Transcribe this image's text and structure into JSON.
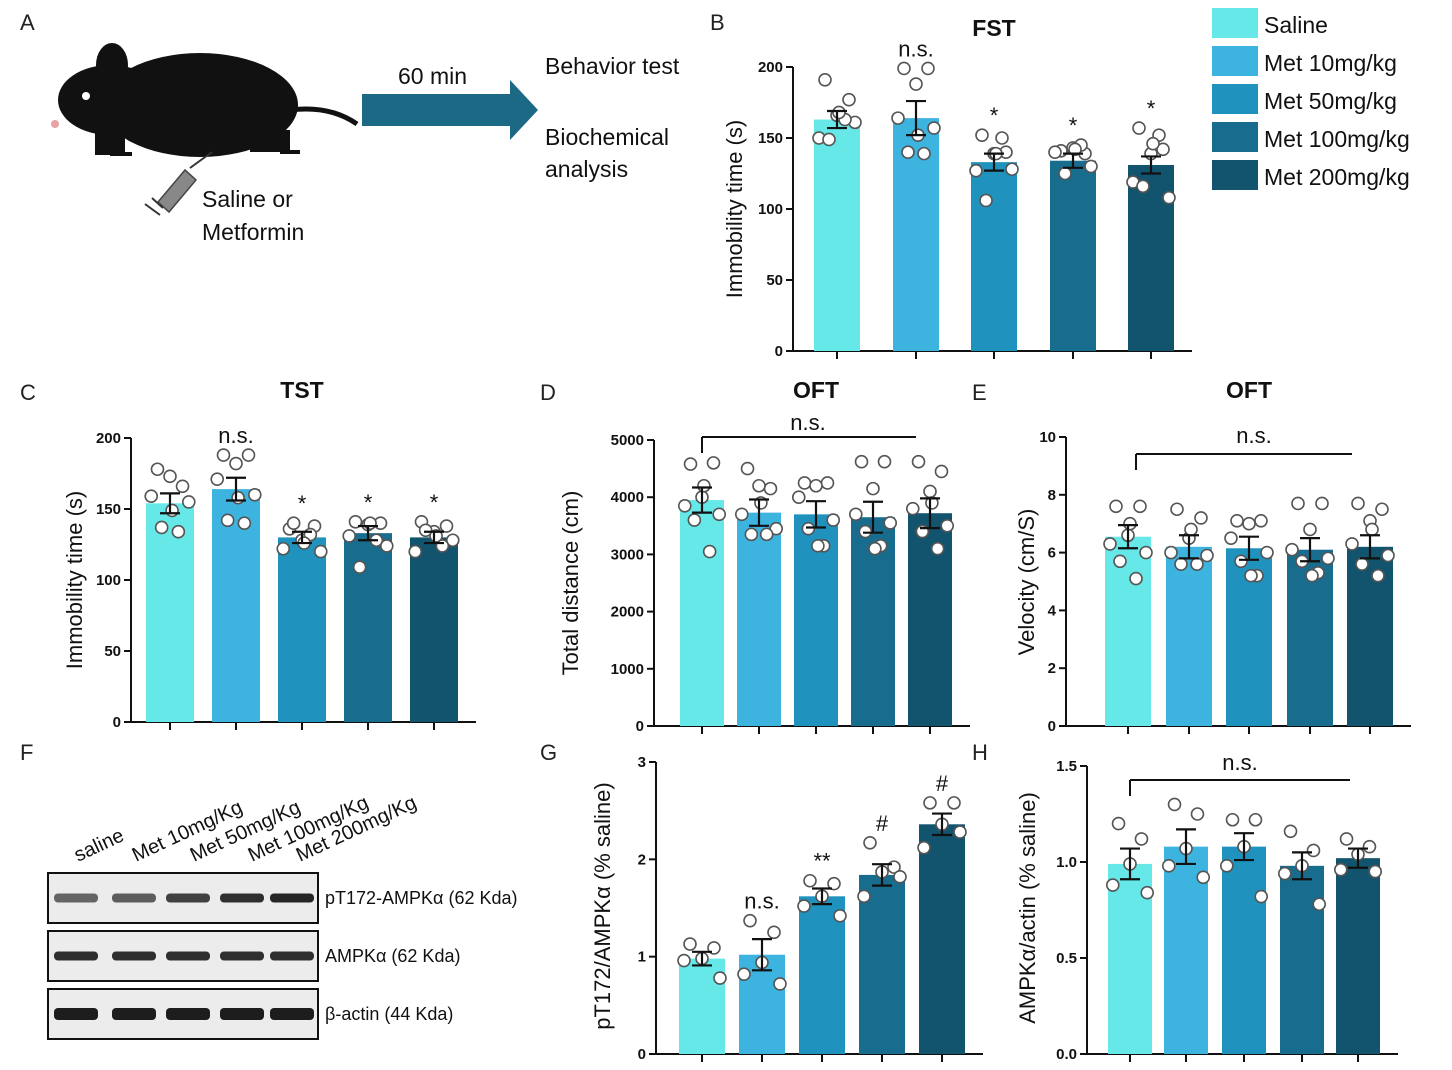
{
  "colors": {
    "series": [
      "#66E8E8",
      "#3DB4E0",
      "#1F93BE",
      "#186C8E",
      "#12546E"
    ],
    "arrow": "#1B6985",
    "syringe": "#888888"
  },
  "legend": {
    "items": [
      "Saline",
      "Met 10mg/kg",
      "Met 50mg/kg",
      "Met 100mg/kg",
      "Met 200mg/kg"
    ]
  },
  "panel_a": {
    "label": "A",
    "arrow_label": "60 min",
    "injection_label": [
      "Saline or",
      "Metformin"
    ],
    "outcomes": [
      "Behavior test",
      "Biochemical",
      "analysis"
    ],
    "mouse_icon": "mouse-icon",
    "syringe_icon": "syringe-icon"
  },
  "panel_f": {
    "label": "F",
    "lanes": [
      "saline",
      "Met 10mg/Kg",
      "Met 50mg/Kg",
      "Met 100mg/Kg",
      "Met 200mg/Kg"
    ],
    "blots": [
      {
        "label": "pT172-AMPKα (62 Kda)",
        "intensity": [
          0.55,
          0.6,
          0.75,
          0.85,
          0.9
        ]
      },
      {
        "label": "AMPKα (62 Kda)",
        "intensity": [
          0.85,
          0.85,
          0.85,
          0.85,
          0.85
        ]
      },
      {
        "label": "β-actin (44 Kda)",
        "intensity": [
          0.95,
          0.95,
          0.95,
          0.95,
          0.95
        ]
      }
    ]
  },
  "chart_data": [
    {
      "panel": "B",
      "type": "bar",
      "title": "FST",
      "ylabel": "Immobility time (s)",
      "ylim": [
        0,
        200
      ],
      "yticks": [
        "0",
        "50",
        "100",
        "150",
        "200"
      ],
      "values": [
        163,
        164,
        133,
        134,
        131
      ],
      "errors": [
        6,
        12,
        6,
        5,
        6
      ],
      "annotations": [
        "",
        "n.s.",
        "*",
        "*",
        "*"
      ],
      "points": [
        [
          191,
          177,
          166,
          150,
          161,
          149,
          163,
          168
        ],
        [
          199,
          199,
          188,
          164,
          157,
          140,
          139,
          152
        ],
        [
          152,
          140,
          139,
          127,
          128,
          106,
          150,
          139
        ],
        [
          141,
          139,
          143,
          140,
          130,
          125,
          145,
          142
        ],
        [
          157,
          142,
          139,
          119,
          108,
          116,
          152,
          146
        ]
      ]
    },
    {
      "panel": "C",
      "type": "bar",
      "title": "TST",
      "ylabel": "Immobility time (s)",
      "ylim": [
        0,
        200
      ],
      "yticks": [
        "0",
        "50",
        "100",
        "150",
        "200"
      ],
      "values": [
        154,
        164,
        130,
        133,
        130
      ],
      "errors": [
        7,
        8,
        4,
        5,
        4
      ],
      "annotations": [
        "",
        "n.s.",
        "*",
        "*",
        "*"
      ],
      "points": [
        [
          178,
          166,
          173,
          159,
          155,
          137,
          134,
          149
        ],
        [
          188,
          188,
          182,
          171,
          160,
          142,
          140,
          158
        ],
        [
          136,
          138,
          128,
          122,
          120,
          140,
          132,
          126
        ],
        [
          141,
          140,
          139,
          131,
          124,
          109,
          128,
          140
        ],
        [
          141,
          138,
          134,
          120,
          128,
          135,
          124,
          131
        ]
      ]
    },
    {
      "panel": "D",
      "type": "bar",
      "title": "OFT",
      "ylabel": "Total distance (cm)",
      "ylim": [
        0,
        5000
      ],
      "yticks": [
        "0",
        "1000",
        "2000",
        "3000",
        "4000",
        "5000"
      ],
      "values": [
        3950,
        3730,
        3700,
        3650,
        3720
      ],
      "errors": [
        220,
        230,
        230,
        270,
        260
      ],
      "annotations": [
        "",
        "",
        "",
        "",
        ""
      ],
      "bracket": "n.s.",
      "points": [
        [
          4580,
          4600,
          4000,
          3850,
          3700,
          3600,
          3050,
          4200
        ],
        [
          4500,
          4150,
          4200,
          3700,
          3450,
          3350,
          3350,
          3900
        ],
        [
          4250,
          4250,
          4200,
          4000,
          3600,
          3450,
          3150,
          3150
        ],
        [
          4620,
          4620,
          4150,
          3700,
          3550,
          3400,
          3150,
          3100
        ],
        [
          4620,
          4450,
          4100,
          3800,
          3500,
          3400,
          3100,
          3900
        ]
      ]
    },
    {
      "panel": "E",
      "type": "bar",
      "title": "OFT",
      "ylabel": "Velocity (cm/S)",
      "ylim": [
        0,
        10
      ],
      "yticks": [
        "0",
        "2",
        "4",
        "6",
        "8",
        "10"
      ],
      "values": [
        6.55,
        6.2,
        6.15,
        6.1,
        6.2
      ],
      "errors": [
        0.4,
        0.4,
        0.4,
        0.4,
        0.4
      ],
      "annotations": [
        "",
        "",
        "",
        "",
        ""
      ],
      "bracket": "n.s.",
      "points": [
        [
          7.6,
          7.6,
          6.6,
          6.3,
          6.0,
          5.7,
          5.1,
          7.0
        ],
        [
          7.5,
          7.2,
          6.5,
          6.0,
          5.9,
          5.6,
          5.6,
          6.8
        ],
        [
          7.1,
          7.1,
          7.0,
          6.5,
          6.0,
          5.7,
          5.2,
          5.2
        ],
        [
          7.7,
          7.7,
          6.8,
          6.1,
          5.8,
          5.7,
          5.3,
          5.2
        ],
        [
          7.7,
          7.5,
          7.1,
          6.3,
          5.9,
          5.6,
          5.2,
          6.8
        ]
      ]
    },
    {
      "panel": "G",
      "type": "bar",
      "title": "",
      "ylabel": "pT172/AMPKα (% saline)",
      "ylim": [
        0,
        3
      ],
      "yticks": [
        "0",
        "1",
        "2",
        "3"
      ],
      "values": [
        0.98,
        1.02,
        1.62,
        1.84,
        2.36
      ],
      "errors": [
        0.07,
        0.16,
        0.08,
        0.11,
        0.11
      ],
      "annotations": [
        "",
        "n.s.",
        "**",
        "#",
        "#"
      ],
      "points": [
        [
          1.13,
          1.09,
          0.98,
          0.96,
          0.78
        ],
        [
          1.37,
          1.25,
          0.94,
          0.82,
          0.72
        ],
        [
          1.78,
          1.75,
          1.62,
          1.52,
          1.42
        ],
        [
          2.17,
          1.92,
          1.87,
          1.62,
          1.82
        ],
        [
          2.58,
          2.58,
          2.36,
          2.12,
          2.28
        ]
      ]
    },
    {
      "panel": "H",
      "type": "bar",
      "title": "",
      "ylabel": "AMPKα/actin (% saline)",
      "ylim": [
        0,
        1.5
      ],
      "yticks": [
        "0.0",
        "0.5",
        "1.0",
        "1.5"
      ],
      "values": [
        0.99,
        1.08,
        1.08,
        0.98,
        1.02
      ],
      "errors": [
        0.08,
        0.09,
        0.07,
        0.07,
        0.05
      ],
      "annotations": [
        "",
        "",
        "",
        "",
        ""
      ],
      "bracket": "n.s.",
      "points": [
        [
          1.2,
          1.12,
          0.99,
          0.88,
          0.84
        ],
        [
          1.3,
          1.25,
          1.07,
          0.98,
          0.92
        ],
        [
          1.22,
          1.22,
          1.08,
          0.98,
          0.82
        ],
        [
          1.16,
          1.06,
          0.98,
          0.94,
          0.78
        ],
        [
          1.12,
          1.08,
          1.04,
          0.96,
          0.95
        ]
      ]
    }
  ]
}
